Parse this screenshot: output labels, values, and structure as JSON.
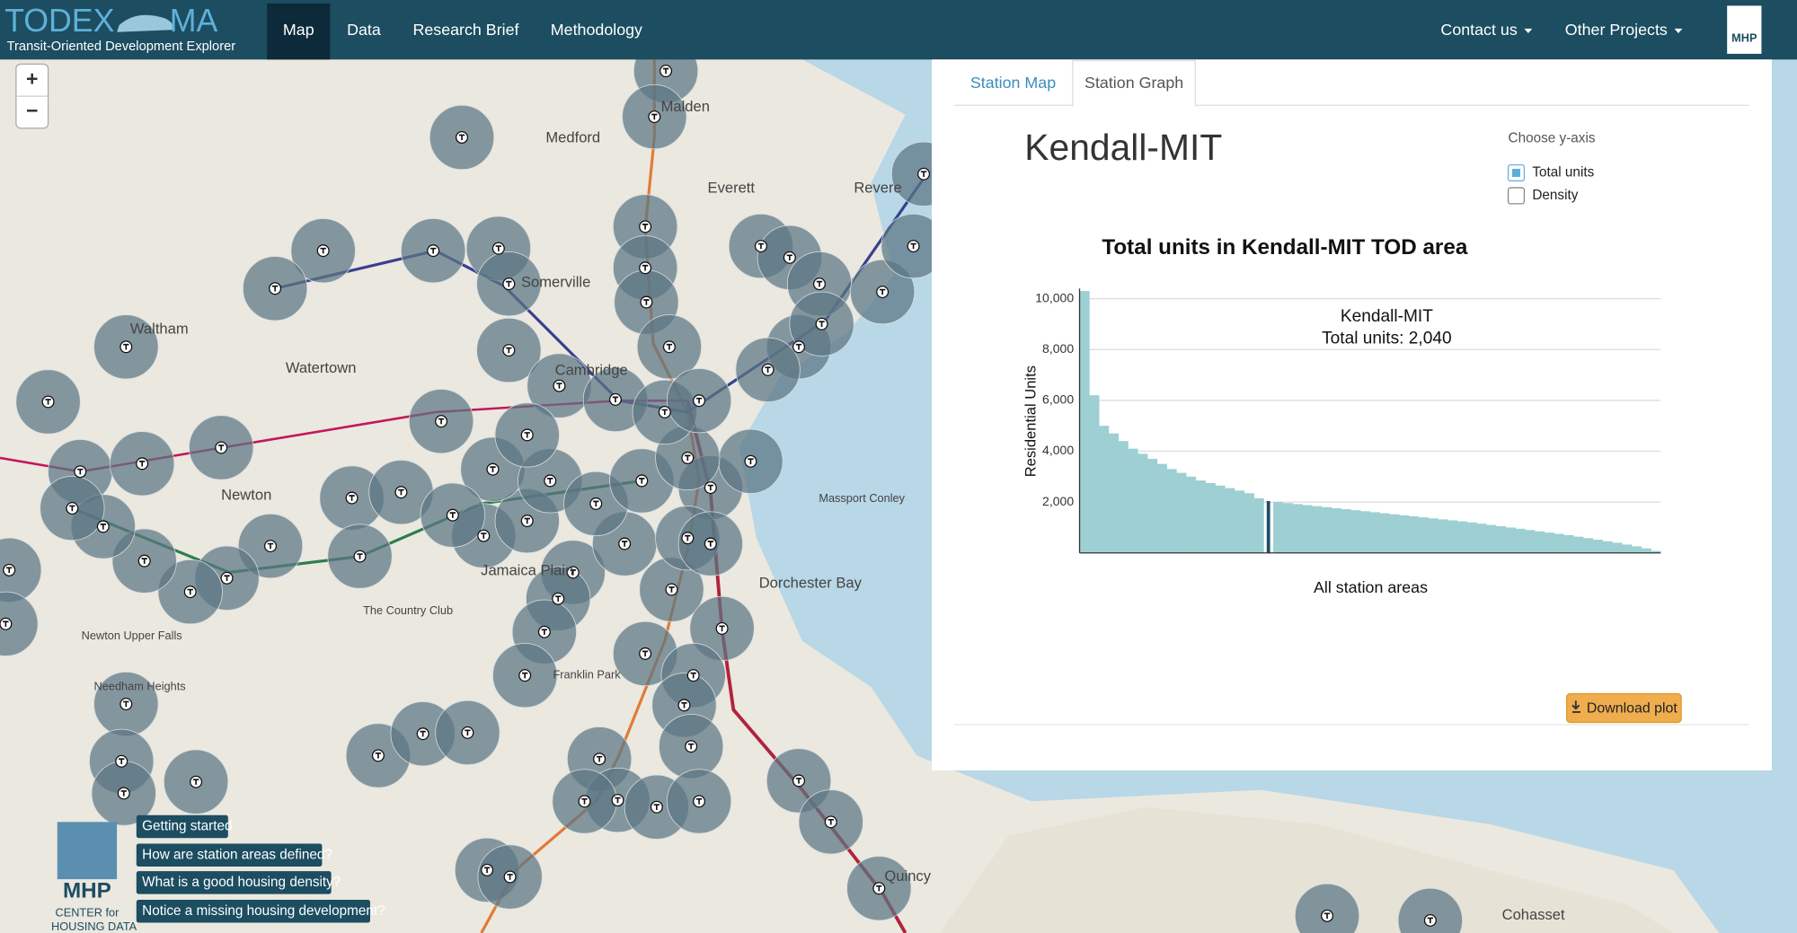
{
  "nav": {
    "logo": "TODEX",
    "logo_suffix": "MA",
    "tagline": "Transit-Oriented Development Explorer",
    "items": [
      "Map",
      "Data",
      "Research Brief",
      "Methodology"
    ],
    "active": 0,
    "right_items": [
      "Contact us",
      "Other Projects"
    ],
    "badge": "MHP"
  },
  "map": {
    "zoom_in": "+",
    "zoom_out": "−",
    "labels": [
      "Malden",
      "Medford",
      "Everett",
      "Revere",
      "Somerville",
      "Cambridge",
      "Watertown",
      "Waltham",
      "Newton",
      "Jamaica Plain",
      "Dorchester Bay",
      "Quincy",
      "Cohasset",
      "Newton Upper Falls",
      "Needham Heights",
      "Franklin Park",
      "The Country Club",
      "Massport Conley"
    ],
    "buttons": [
      "Getting started",
      "How are station areas defined?",
      "What is a good housing density?",
      "Notice a missing housing development?"
    ],
    "logo": "MHP",
    "logo_sub": [
      "CENTER for",
      "HOUSING DATA"
    ]
  },
  "panel": {
    "tabs": [
      "Station Map",
      "Station Graph"
    ],
    "active_tab": 1,
    "station": "Kendall-MIT",
    "yaxis_title": "Choose y-axis",
    "yaxis_options": [
      "Total units",
      "Density"
    ],
    "yaxis_selected": 0,
    "download": "Download plot"
  },
  "chart_data": {
    "type": "bar",
    "title": "Total units in Kendall-MIT TOD area",
    "x_label": "All station areas",
    "y_label": "Residential Units",
    "values": [
      10300,
      6200,
      5000,
      4700,
      4400,
      4100,
      3900,
      3700,
      3500,
      3300,
      3150,
      3000,
      2850,
      2750,
      2650,
      2550,
      2450,
      2350,
      2150,
      2040,
      2000,
      1960,
      1920,
      1880,
      1840,
      1800,
      1760,
      1720,
      1680,
      1640,
      1600,
      1560,
      1520,
      1480,
      1440,
      1400,
      1360,
      1320,
      1280,
      1240,
      1200,
      1150,
      1100,
      1050,
      1000,
      950,
      900,
      850,
      800,
      750,
      700,
      640,
      580,
      520,
      460,
      400,
      330,
      260,
      180,
      80
    ],
    "color": "#9dcfd3",
    "highlight": {
      "index": 19,
      "color": "#1f4e66"
    },
    "annotation": [
      "Kendall-MIT",
      "Total units: 2,040"
    ],
    "ylim": [
      0,
      10400
    ],
    "yticks": [
      {
        "value": 2000,
        "label": "2,000"
      },
      {
        "value": 4000,
        "label": "4,000"
      },
      {
        "value": 6000,
        "label": "6,000"
      },
      {
        "value": 8000,
        "label": "8,000"
      },
      {
        "value": 10000,
        "label": "10,000"
      }
    ],
    "grid": true
  }
}
